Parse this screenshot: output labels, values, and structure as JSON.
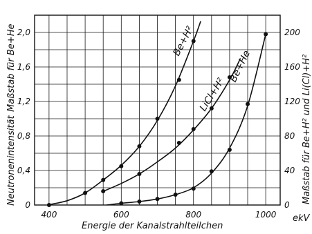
{
  "chart_data": {
    "type": "scatter",
    "language": "de",
    "xlabel": "Energie der Kanalstrahlteilchen",
    "x_unit": "ekV",
    "ylabel_left_top": "Maßstab für Be+He",
    "ylabel_left_bottom": "Neutronenintensität",
    "ylabel_right": "Maßstab für Be+H² und Li(Cl)+H²",
    "xlim": [
      360,
      1040
    ],
    "ylim_left": [
      0,
      2.2
    ],
    "ylim_right": [
      0,
      220
    ],
    "x_ticks": [
      {
        "value": 400,
        "label": "400"
      },
      {
        "value": 600,
        "label": "600"
      },
      {
        "value": 800,
        "label": "800"
      },
      {
        "value": 1000,
        "label": "1000"
      }
    ],
    "y_ticks_left": [
      {
        "value": 0,
        "label": "0"
      },
      {
        "value": 0.4,
        "label": "0,4"
      },
      {
        "value": 0.8,
        "label": "0,8"
      },
      {
        "value": 1.2,
        "label": "1,2"
      },
      {
        "value": 1.6,
        "label": "1,6"
      },
      {
        "value": 2.0,
        "label": "2,0"
      }
    ],
    "y_ticks_right": [
      {
        "value": 0,
        "label": "0"
      },
      {
        "value": 40,
        "label": "40"
      },
      {
        "value": 80,
        "label": "80"
      },
      {
        "value": 120,
        "label": "120"
      },
      {
        "value": 160,
        "label": "160"
      },
      {
        "value": 200,
        "label": "200"
      }
    ],
    "grid": true,
    "series": [
      {
        "name": "Be+H²",
        "scale": "right",
        "points": [
          [
            400,
            0
          ],
          [
            500,
            14
          ],
          [
            550,
            29
          ],
          [
            600,
            45
          ],
          [
            650,
            68
          ],
          [
            700,
            100
          ],
          [
            760,
            145
          ],
          [
            800,
            190
          ]
        ],
        "curve": [
          [
            395,
            0
          ],
          [
            450,
            5
          ],
          [
            500,
            14
          ],
          [
            550,
            29
          ],
          [
            600,
            46
          ],
          [
            650,
            68
          ],
          [
            700,
            98
          ],
          [
            750,
            138
          ],
          [
            800,
            190
          ],
          [
            820,
            213
          ]
        ]
      },
      {
        "name": "LiCl+H²",
        "scale": "right",
        "points": [
          [
            550,
            16
          ],
          [
            650,
            36
          ],
          [
            760,
            72
          ],
          [
            800,
            88
          ],
          [
            850,
            112
          ],
          [
            900,
            148
          ]
        ],
        "curve": [
          [
            545,
            15
          ],
          [
            600,
            25
          ],
          [
            650,
            36
          ],
          [
            700,
            50
          ],
          [
            750,
            66
          ],
          [
            800,
            87
          ],
          [
            850,
            112
          ],
          [
            900,
            145
          ],
          [
            930,
            170
          ]
        ]
      },
      {
        "name": "Be+He",
        "scale": "left",
        "points": [
          [
            600,
            0.02
          ],
          [
            650,
            0.04
          ],
          [
            700,
            0.07
          ],
          [
            750,
            0.12
          ],
          [
            800,
            0.19
          ],
          [
            850,
            0.39
          ],
          [
            900,
            0.64
          ],
          [
            950,
            1.17
          ],
          [
            1000,
            1.98
          ]
        ],
        "curve": [
          [
            560,
            0
          ],
          [
            600,
            0.02
          ],
          [
            650,
            0.04
          ],
          [
            700,
            0.07
          ],
          [
            750,
            0.12
          ],
          [
            800,
            0.2
          ],
          [
            850,
            0.37
          ],
          [
            900,
            0.66
          ],
          [
            950,
            1.15
          ],
          [
            1000,
            1.98
          ]
        ]
      }
    ]
  }
}
